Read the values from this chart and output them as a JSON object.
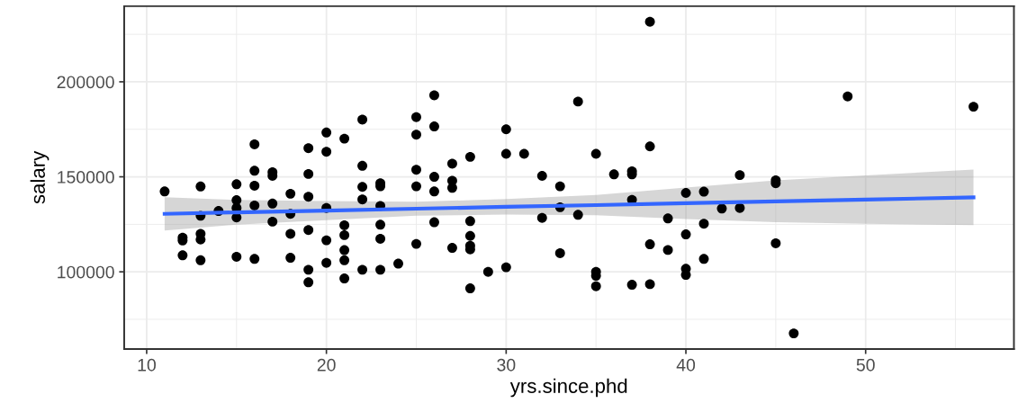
{
  "chart_data": {
    "type": "scatter",
    "xlabel": "yrs.since.phd",
    "ylabel": "salary",
    "xlim": [
      8.75,
      58.25
    ],
    "xticks": [
      10,
      20,
      30,
      40,
      50
    ],
    "ylim": [
      59400,
      239800
    ],
    "yticks": [
      100000,
      150000,
      200000
    ],
    "grid": true,
    "series": [
      {
        "color": "#000000",
        "marker": "circle",
        "x": [
          11,
          12,
          12,
          12,
          13,
          13,
          13,
          13,
          13,
          14,
          15,
          15,
          15,
          15,
          15,
          16,
          16,
          16,
          16,
          16,
          17,
          17,
          17,
          17,
          18,
          18,
          18,
          18,
          19,
          19,
          19,
          19,
          19,
          19,
          20,
          20,
          20,
          20,
          20,
          21,
          21,
          21,
          21,
          21,
          21,
          22,
          22,
          22,
          22,
          22,
          23,
          23,
          23,
          23,
          23,
          23,
          24,
          25,
          25,
          25,
          25,
          25,
          26,
          26,
          26,
          26,
          26,
          27,
          27,
          27,
          27,
          28,
          28,
          28,
          28,
          28,
          28,
          29,
          30,
          30,
          30,
          31,
          32,
          32,
          33,
          33,
          33,
          34,
          34,
          35,
          35,
          35,
          35,
          36,
          37,
          37,
          37,
          37,
          38,
          38,
          38,
          38,
          39,
          39,
          40,
          40,
          40,
          40,
          41,
          41,
          41,
          42,
          43,
          43,
          45,
          45,
          45,
          46,
          49,
          56
        ],
        "values": [
          142300,
          118000,
          116500,
          108700,
          144900,
          129500,
          120000,
          117000,
          106100,
          132000,
          146100,
          137700,
          133600,
          128600,
          107900,
          167100,
          153200,
          145300,
          134900,
          106800,
          152400,
          150500,
          135900,
          126400,
          141100,
          130500,
          120000,
          107400,
          165100,
          151500,
          139500,
          122000,
          101100,
          94500,
          173300,
          163200,
          133600,
          116600,
          104700,
          170100,
          124500,
          119300,
          111400,
          106100,
          96500,
          180100,
          155800,
          144700,
          138100,
          101100,
          146600,
          145000,
          134700,
          124800,
          117400,
          101100,
          104300,
          181400,
          172200,
          153700,
          145000,
          114700,
          192900,
          176500,
          150000,
          142300,
          126100,
          156900,
          147900,
          144200,
          112600,
          160500,
          126700,
          118900,
          113700,
          111800,
          91300,
          100000,
          175000,
          162100,
          102400,
          162100,
          150500,
          128400,
          145000,
          134000,
          109800,
          189600,
          130000,
          162100,
          100000,
          97900,
          92400,
          151300,
          152900,
          151300,
          137900,
          93200,
          231600,
          166000,
          114500,
          93500,
          128100,
          111500,
          141500,
          119700,
          101600,
          98400,
          142200,
          125300,
          106800,
          133300,
          150900,
          133600,
          148200,
          146600,
          115000,
          67600,
          192300,
          186900
        ]
      },
      {
        "type": "line",
        "color": "#3366ff",
        "line_style": "solid",
        "x": [
          11,
          15,
          20,
          25,
          30,
          35,
          40,
          45,
          50,
          56
        ],
        "values": [
          130500,
          131300,
          132200,
          133200,
          134200,
          135100,
          136100,
          137100,
          138000,
          139200
        ],
        "lower": [
          121700,
          124800,
          127200,
          129500,
          130100,
          129800,
          127800,
          126100,
          125300,
          124600
        ],
        "upper": [
          139300,
          137800,
          137200,
          136900,
          138300,
          140400,
          144400,
          148100,
          150700,
          153800
        ]
      }
    ]
  }
}
